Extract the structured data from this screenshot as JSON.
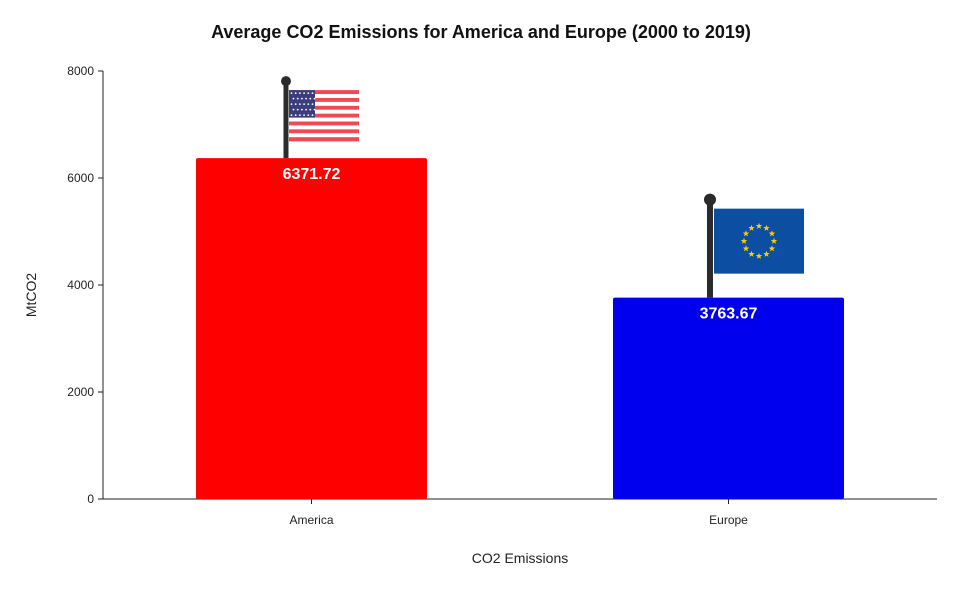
{
  "chart_data": {
    "type": "bar",
    "title": "Average CO2 Emissions for America and Europe (2000 to 2019)",
    "xlabel": "CO2 Emissions",
    "ylabel": "MtCO2",
    "categories": [
      "America",
      "Europe"
    ],
    "values": [
      6371.72,
      3763.67
    ],
    "value_labels": [
      "6371.72",
      "3763.67"
    ],
    "bar_colors": [
      "#ff0000",
      "#0000ee"
    ],
    "ylim": [
      0,
      8000
    ],
    "yticks": [
      0,
      2000,
      4000,
      6000,
      8000
    ],
    "ytick_labels": [
      "0",
      "2000",
      "4000",
      "6000",
      "8000"
    ],
    "grid": false,
    "legend": "none",
    "flags": [
      "usa-flag-icon",
      "eu-flag-icon"
    ]
  }
}
